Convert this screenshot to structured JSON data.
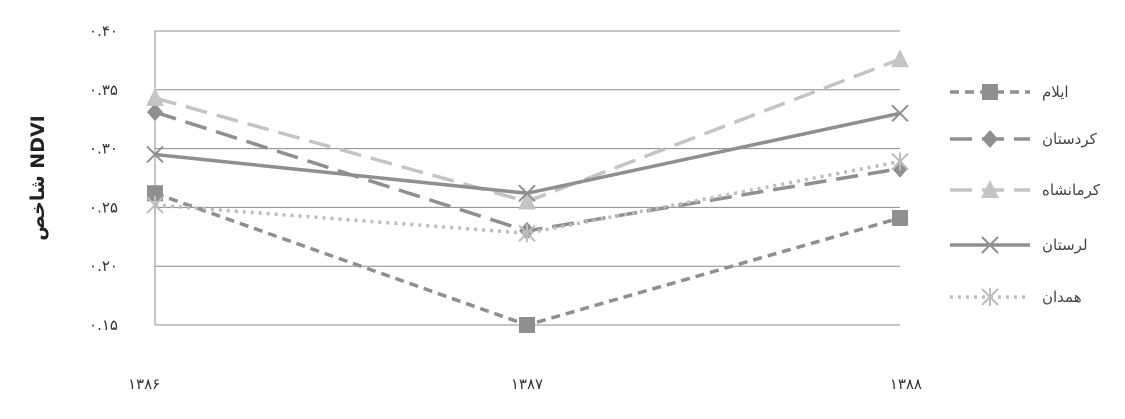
{
  "chart_data": {
    "type": "line",
    "title": "",
    "xlabel": "",
    "ylabel": "شاخص NDVI",
    "categories": [
      "۱۳۸۶",
      "۱۳۸۷",
      "۱۳۸۸"
    ],
    "ylim": [
      0.15,
      0.4
    ],
    "yticks": [
      0.15,
      0.2,
      0.25,
      0.3,
      0.35,
      0.4
    ],
    "ytick_labels": [
      "۰.۱۵",
      "۰.۲۰",
      "۰.۲۵",
      "۰.۳۰",
      "۰.۳۵",
      "۰.۴۰"
    ],
    "grid": "horizontal",
    "legend_position": "right",
    "series": [
      {
        "name": "ایلام",
        "values": [
          0.262,
          0.15,
          0.241
        ],
        "color": "#8f8f8f",
        "dash": "short-dash",
        "marker": "square"
      },
      {
        "name": "کردستان",
        "values": [
          0.331,
          0.23,
          0.283
        ],
        "color": "#8f8f8f",
        "dash": "long-dash",
        "marker": "diamond"
      },
      {
        "name": "کرمانشاه",
        "values": [
          0.343,
          0.255,
          0.376
        ],
        "color": "#c4c4c4",
        "dash": "long-dash",
        "marker": "triangle"
      },
      {
        "name": "لرستان",
        "values": [
          0.295,
          0.262,
          0.33
        ],
        "color": "#8f8f8f",
        "dash": "solid",
        "marker": "x"
      },
      {
        "name": "همدان",
        "values": [
          0.252,
          0.228,
          0.289
        ],
        "color": "#bdbdbd",
        "dash": "dotted",
        "marker": "star"
      }
    ]
  }
}
